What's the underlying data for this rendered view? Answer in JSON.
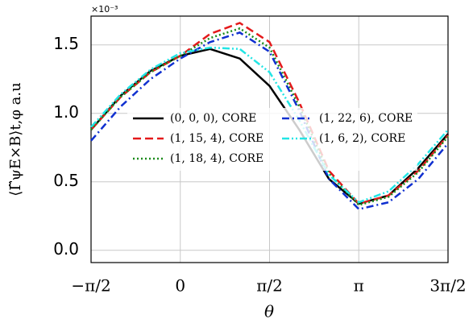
{
  "chart_data": {
    "type": "line",
    "multiplier": "×10⁻³",
    "xlabel": "θ",
    "ylabel": "⟨Γ̃ψE×B⟩t,φ a.u",
    "x": [
      -1.5708,
      -1.0472,
      -0.5236,
      0,
      0.5236,
      1.0472,
      1.5708,
      2.0944,
      2.618,
      3.1416,
      3.6652,
      4.1888,
      4.7124
    ],
    "series": [
      {
        "name": "(0, 0, 0), CORE",
        "color": "#000000",
        "style": "solid",
        "values": [
          0.88,
          1.13,
          1.31,
          1.42,
          1.47,
          1.4,
          1.2,
          0.88,
          0.52,
          0.34,
          0.4,
          0.6,
          0.85
        ]
      },
      {
        "name": "(1, 15, 4), CORE",
        "color": "#e41a1c",
        "style": "dashed",
        "values": [
          0.88,
          1.12,
          1.3,
          1.42,
          1.58,
          1.66,
          1.52,
          1.08,
          0.58,
          0.34,
          0.4,
          0.58,
          0.84
        ]
      },
      {
        "name": "(1, 18, 4), CORE",
        "color": "#1a8a1a",
        "style": "dotted",
        "values": [
          0.88,
          1.12,
          1.3,
          1.42,
          1.55,
          1.62,
          1.48,
          1.05,
          0.56,
          0.33,
          0.39,
          0.57,
          0.83
        ]
      },
      {
        "name": "(1, 22, 6), CORE",
        "color": "#1030d0",
        "style": "dashdot",
        "values": [
          0.8,
          1.05,
          1.25,
          1.4,
          1.52,
          1.59,
          1.45,
          1.02,
          0.52,
          0.3,
          0.35,
          0.52,
          0.78
        ]
      },
      {
        "name": "(1, 6, 2), CORE",
        "color": "#22e5e5",
        "style": "dashdotdot",
        "values": [
          0.9,
          1.14,
          1.32,
          1.44,
          1.48,
          1.47,
          1.3,
          0.95,
          0.55,
          0.35,
          0.43,
          0.63,
          0.88
        ]
      }
    ],
    "xlim": [
      -1.5708,
      4.7124
    ],
    "xticks": [
      {
        "value": -1.5708,
        "label": "−π/2"
      },
      0,
      {
        "value": 1.5708,
        "label": "π/2"
      },
      {
        "value": 3.1416,
        "label": "π"
      },
      {
        "value": 4.7124,
        "label": "3π/2"
      }
    ],
    "ylim": [
      -0.09,
      1.71
    ],
    "yticks": [
      {
        "value": 0,
        "label": "0.0"
      },
      0.5,
      {
        "value": 1,
        "label": "1.0"
      },
      1.5
    ],
    "grid": true
  }
}
